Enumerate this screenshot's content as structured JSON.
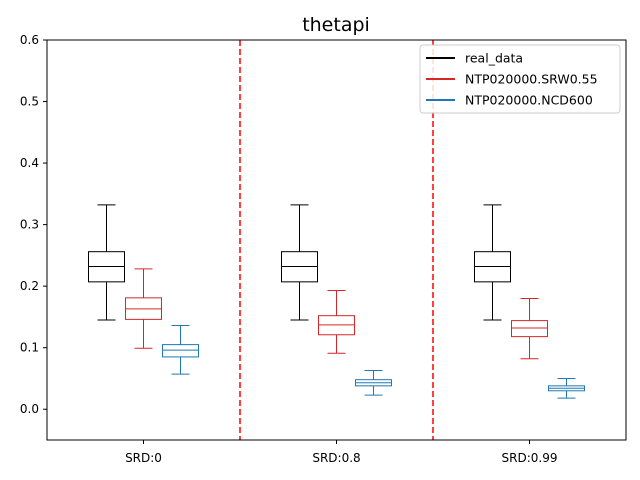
{
  "chart_data": {
    "type": "boxplot",
    "title": "thetapi",
    "xlabel": "",
    "ylabel": "",
    "ylim": [
      -0.05,
      0.6
    ],
    "yticks": [
      0.0,
      0.1,
      0.2,
      0.3,
      0.4,
      0.5,
      0.6
    ],
    "ytick_labels": [
      "0.0",
      "0.1",
      "0.2",
      "0.3",
      "0.4",
      "0.5",
      "0.6"
    ],
    "categories": [
      "SRD:0",
      "SRD:0.8",
      "SRD:0.99"
    ],
    "legend_position": "top-right",
    "separators": {
      "color": "#ff0000",
      "style": "dashed",
      "between_groups": true
    },
    "series": [
      {
        "name": "real_data",
        "color": "#000000",
        "boxes": [
          {
            "whisker_low": 0.145,
            "q1": 0.207,
            "median": 0.232,
            "q3": 0.256,
            "whisker_high": 0.332
          },
          {
            "whisker_low": 0.145,
            "q1": 0.207,
            "median": 0.232,
            "q3": 0.256,
            "whisker_high": 0.332
          },
          {
            "whisker_low": 0.145,
            "q1": 0.207,
            "median": 0.232,
            "q3": 0.256,
            "whisker_high": 0.332
          }
        ]
      },
      {
        "name": "NTP020000.SRW0.55",
        "color": "#d62728",
        "boxes": [
          {
            "whisker_low": 0.099,
            "q1": 0.146,
            "median": 0.163,
            "q3": 0.181,
            "whisker_high": 0.228
          },
          {
            "whisker_low": 0.091,
            "q1": 0.121,
            "median": 0.137,
            "q3": 0.152,
            "whisker_high": 0.193
          },
          {
            "whisker_low": 0.082,
            "q1": 0.118,
            "median": 0.132,
            "q3": 0.144,
            "whisker_high": 0.18
          }
        ]
      },
      {
        "name": "NTP020000.NCD600",
        "color": "#1f77b4",
        "boxes": [
          {
            "whisker_low": 0.057,
            "q1": 0.085,
            "median": 0.096,
            "q3": 0.105,
            "whisker_high": 0.136
          },
          {
            "whisker_low": 0.023,
            "q1": 0.038,
            "median": 0.043,
            "q3": 0.048,
            "whisker_high": 0.063
          },
          {
            "whisker_low": 0.018,
            "q1": 0.03,
            "median": 0.034,
            "q3": 0.038,
            "whisker_high": 0.05
          }
        ]
      }
    ]
  }
}
